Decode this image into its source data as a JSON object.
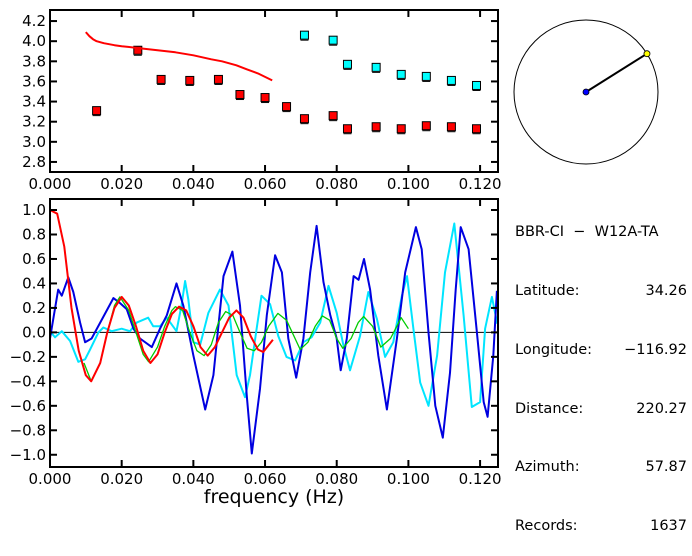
{
  "chart_data": [
    {
      "type": "scatter",
      "title": "",
      "xlabel": "",
      "ylabel": "",
      "xlim": [
        0,
        0.125
      ],
      "ylim": [
        2.7,
        4.31
      ],
      "xticks": [
        "0.000",
        "0.020",
        "0.040",
        "0.060",
        "0.080",
        "0.100",
        "0.120"
      ],
      "xtick_values": [
        0,
        0.02,
        0.04,
        0.06,
        0.08,
        0.1,
        0.12
      ],
      "yticks": [
        "2.8",
        "3.0",
        "3.2",
        "3.4",
        "3.6",
        "3.8",
        "4.0",
        "4.2"
      ],
      "ytick_values": [
        2.8,
        3.0,
        3.2,
        3.4,
        3.6,
        3.8,
        4.0,
        4.2
      ],
      "series": [
        {
          "name": "red-points",
          "kind": "markers",
          "color": "#ff0000",
          "x": [
            0.013,
            0.0245,
            0.031,
            0.039,
            0.047,
            0.053,
            0.06,
            0.066,
            0.071,
            0.079,
            0.083,
            0.091,
            0.098,
            0.105,
            0.112,
            0.119
          ],
          "y": [
            3.31,
            3.91,
            3.62,
            3.61,
            3.62,
            3.47,
            3.44,
            3.35,
            3.23,
            3.26,
            3.13,
            3.15,
            3.13,
            3.16,
            3.15,
            3.13
          ]
        },
        {
          "name": "cyan-points",
          "kind": "markers",
          "color": "#00ffff",
          "x": [
            0.071,
            0.079,
            0.083,
            0.091,
            0.098,
            0.105,
            0.112,
            0.119
          ],
          "y": [
            4.06,
            4.01,
            3.77,
            3.74,
            3.67,
            3.65,
            3.61,
            3.56
          ]
        },
        {
          "name": "red-curve",
          "kind": "line",
          "color": "#ff0000",
          "x": [
            0.01,
            0.011,
            0.012,
            0.013,
            0.015,
            0.018,
            0.02,
            0.025,
            0.03,
            0.035,
            0.04,
            0.045,
            0.048,
            0.052,
            0.055,
            0.058,
            0.062
          ],
          "y": [
            4.09,
            4.05,
            4.02,
            4.0,
            3.98,
            3.96,
            3.95,
            3.93,
            3.91,
            3.89,
            3.86,
            3.82,
            3.8,
            3.76,
            3.72,
            3.68,
            3.61
          ]
        }
      ]
    },
    {
      "type": "line",
      "title": "",
      "xlabel": "frequency (Hz)",
      "ylabel": "",
      "xlim": [
        0,
        0.125
      ],
      "ylim": [
        -1.1,
        1.09
      ],
      "xticks": [
        "0.000",
        "0.020",
        "0.040",
        "0.060",
        "0.080",
        "0.100",
        "0.120"
      ],
      "xtick_values": [
        0,
        0.02,
        0.04,
        0.06,
        0.08,
        0.1,
        0.12
      ],
      "yticks": [
        "1.0",
        "0.8",
        "0.6",
        "0.4",
        "0.2",
        "0.0",
        "−0.2",
        "−0.4",
        "−0.6",
        "−0.8",
        "−1.0"
      ],
      "ytick_values": [
        1.0,
        0.8,
        0.6,
        0.4,
        0.2,
        0.0,
        -0.2,
        -0.4,
        -0.6,
        -0.8,
        -1.0
      ],
      "series": [
        {
          "name": "cyan",
          "color": "#00e5ff",
          "width": 2,
          "x": [
            0,
            0.0014,
            0.0033,
            0.0056,
            0.0079,
            0.0098,
            0.0112,
            0.0135,
            0.0149,
            0.0172,
            0.02,
            0.0223,
            0.0242,
            0.0274,
            0.0288,
            0.0307,
            0.0326,
            0.0353,
            0.0367,
            0.0377,
            0.0386,
            0.04,
            0.0419,
            0.0442,
            0.0474,
            0.0498,
            0.0521,
            0.0544,
            0.0558,
            0.0575,
            0.059,
            0.0614,
            0.0637,
            0.066,
            0.0684,
            0.0707,
            0.073,
            0.0754,
            0.0777,
            0.08,
            0.0819,
            0.0837,
            0.0865,
            0.0888,
            0.0912,
            0.0935,
            0.0958,
            0.0982,
            0.0996,
            0.1014,
            0.1033,
            0.1056,
            0.108,
            0.1102,
            0.1128,
            0.1154,
            0.1177,
            0.12,
            0.1214,
            0.1233,
            0.1248
          ],
          "y": [
            0.01,
            -0.04,
            0.01,
            -0.07,
            -0.24,
            -0.22,
            -0.14,
            0.0,
            0.04,
            0.01,
            0.03,
            0.01,
            0.08,
            0.12,
            0.05,
            0.05,
            0.12,
            0.01,
            0.22,
            0.42,
            0.27,
            -0.08,
            -0.1,
            0.16,
            0.35,
            0.22,
            -0.35,
            -0.53,
            -0.35,
            0.0,
            0.3,
            0.23,
            -0.03,
            -0.2,
            -0.23,
            -0.08,
            -0.04,
            0.08,
            0.38,
            0.16,
            -0.11,
            -0.31,
            -0.03,
            0.33,
            0.11,
            -0.2,
            -0.08,
            0.3,
            0.46,
            0.03,
            -0.41,
            -0.6,
            -0.19,
            0.49,
            0.89,
            0.14,
            -0.61,
            -0.57,
            0.03,
            0.29,
            0.07
          ]
        },
        {
          "name": "blue",
          "color": "#0000e0",
          "width": 2,
          "x": [
            0,
            0.0023,
            0.0033,
            0.0051,
            0.0065,
            0.0084,
            0.0098,
            0.0116,
            0.014,
            0.0177,
            0.0195,
            0.0214,
            0.0233,
            0.0251,
            0.0284,
            0.0307,
            0.0326,
            0.0353,
            0.0372,
            0.04,
            0.0433,
            0.0456,
            0.0484,
            0.0509,
            0.053,
            0.0549,
            0.0563,
            0.0586,
            0.0605,
            0.0628,
            0.0647,
            0.0665,
            0.0687,
            0.0707,
            0.0726,
            0.0744,
            0.0763,
            0.0782,
            0.08,
            0.0811,
            0.0828,
            0.0847,
            0.0861,
            0.0876,
            0.0893,
            0.0916,
            0.094,
            0.0968,
            0.0991,
            0.1021,
            0.1037,
            0.1056,
            0.1075,
            0.1096,
            0.1116,
            0.1132,
            0.1146,
            0.1168,
            0.1191,
            0.121,
            0.1221,
            0.1237,
            0.1247
          ],
          "y": [
            -0.05,
            0.35,
            0.3,
            0.45,
            0.33,
            0.08,
            -0.08,
            -0.05,
            0.08,
            0.28,
            0.24,
            0.19,
            0.03,
            -0.05,
            -0.12,
            0.03,
            0.14,
            0.4,
            0.22,
            -0.19,
            -0.63,
            -0.35,
            0.46,
            0.66,
            0.22,
            -0.52,
            -0.99,
            -0.46,
            0.14,
            0.63,
            0.49,
            -0.05,
            -0.37,
            -0.05,
            0.49,
            0.87,
            0.41,
            0.14,
            -0.05,
            -0.31,
            -0.05,
            0.46,
            0.43,
            0.6,
            0.35,
            -0.19,
            -0.63,
            -0.05,
            0.49,
            0.86,
            0.68,
            0.0,
            -0.6,
            -0.86,
            -0.33,
            0.35,
            0.86,
            0.68,
            0.0,
            -0.57,
            -0.69,
            -0.19,
            0.34
          ]
        },
        {
          "name": "green",
          "color": "#00cc00",
          "width": 1.3,
          "x": [
            0.0095,
            0.0115,
            0.014,
            0.016,
            0.018,
            0.0195,
            0.022,
            0.024,
            0.026,
            0.0275,
            0.03,
            0.032,
            0.034,
            0.035,
            0.037,
            0.039,
            0.041,
            0.043,
            0.045,
            0.047,
            0.049,
            0.051,
            0.053,
            0.055,
            0.057,
            0.059,
            0.061,
            0.0636,
            0.066,
            0.0698,
            0.072,
            0.074,
            0.076,
            0.078,
            0.08,
            0.0817,
            0.084,
            0.086,
            0.0875,
            0.09,
            0.0923,
            0.095,
            0.098,
            0.1
          ],
          "y": [
            -0.25,
            -0.4,
            -0.25,
            0.0,
            0.22,
            0.29,
            0.18,
            0.0,
            -0.18,
            -0.24,
            -0.12,
            0.05,
            0.18,
            0.21,
            0.18,
            0.0,
            -0.15,
            -0.19,
            -0.1,
            0.08,
            0.17,
            0.14,
            0.0,
            -0.13,
            -0.15,
            -0.08,
            0.05,
            0.155,
            0.1,
            -0.14,
            -0.08,
            0.05,
            0.135,
            0.1,
            -0.05,
            -0.13,
            -0.05,
            0.08,
            0.13,
            0.05,
            -0.12,
            -0.05,
            0.12,
            0.03
          ]
        },
        {
          "name": "red",
          "color": "#ff0000",
          "width": 2,
          "x": [
            0,
            0.002,
            0.004,
            0.006,
            0.008,
            0.01,
            0.0115,
            0.014,
            0.016,
            0.018,
            0.02,
            0.022,
            0.024,
            0.026,
            0.028,
            0.03,
            0.032,
            0.034,
            0.036,
            0.038,
            0.04,
            0.042,
            0.044,
            0.046,
            0.048,
            0.05,
            0.052,
            0.054,
            0.056,
            0.058,
            0.0595,
            0.0622
          ],
          "y": [
            1.0,
            0.97,
            0.7,
            0.2,
            -0.15,
            -0.35,
            -0.4,
            -0.25,
            0.0,
            0.2,
            0.29,
            0.22,
            0.05,
            -0.15,
            -0.25,
            -0.18,
            0.0,
            0.15,
            0.21,
            0.18,
            0.05,
            -0.12,
            -0.19,
            -0.12,
            0.0,
            0.12,
            0.18,
            0.12,
            -0.03,
            -0.14,
            -0.16,
            -0.06
          ]
        }
      ]
    }
  ],
  "map": {
    "azimuth_deg": 57.87,
    "center_color": "#0000ff",
    "station_color": "#ffff00"
  },
  "info": {
    "title": "BBR-CI  −  W12A-TA",
    "rows": [
      {
        "label": "Latitude:",
        "value": "34.26"
      },
      {
        "label": "Longitude:",
        "value": "−116.92"
      },
      {
        "label": "Distance:",
        "value": "220.27"
      },
      {
        "label": "Azimuth:",
        "value": "57.87"
      },
      {
        "label": "Records:",
        "value": "1637"
      }
    ]
  }
}
